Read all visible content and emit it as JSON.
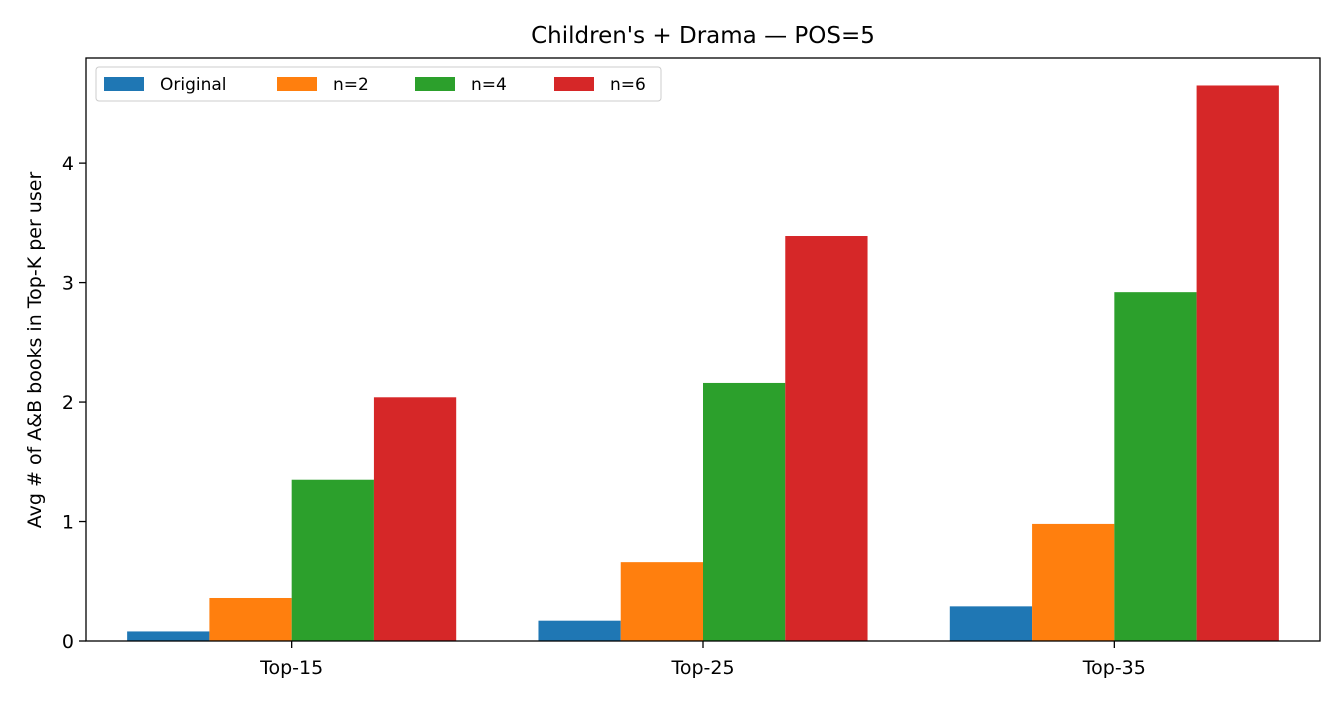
{
  "chart_data": {
    "type": "bar",
    "title": "Children's + Drama — POS=5",
    "xlabel": "",
    "ylabel": "Avg # of A&B books in Top-K per user",
    "categories": [
      "Top-15",
      "Top-25",
      "Top-35"
    ],
    "series": [
      {
        "name": "Original",
        "color": "#1f77b4",
        "values": [
          0.08,
          0.17,
          0.29
        ]
      },
      {
        "name": "n=2",
        "color": "#ff7f0e",
        "values": [
          0.36,
          0.66,
          0.98
        ]
      },
      {
        "name": "n=4",
        "color": "#2ca02c",
        "values": [
          1.35,
          2.16,
          2.92
        ]
      },
      {
        "name": "n=6",
        "color": "#d62728",
        "values": [
          2.04,
          3.39,
          4.65
        ]
      }
    ],
    "ylim": [
      0,
      4.88
    ],
    "yticks": [
      "0",
      "1",
      "2",
      "3",
      "4"
    ],
    "grid": false,
    "legend_position": "top-left"
  }
}
